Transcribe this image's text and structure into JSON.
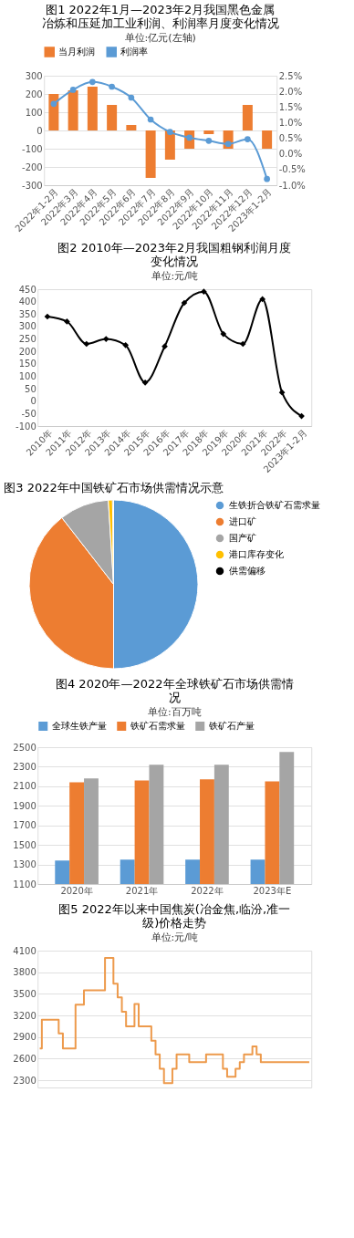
{
  "chart_data": [
    {
      "type": "bar",
      "title": "图1 2022年1月—2023年2月我国黑色金属冶炼和压延加工业利润、利润率月度变化情况",
      "subtitle": "单位:亿元(左轴)",
      "categories": [
        "2022年1-2月",
        "2022年3月",
        "2022年4月",
        "2022年5月",
        "2022年6月",
        "2022年7月",
        "2022年8月",
        "2022年9月",
        "2022年10月",
        "2022年11月",
        "2022年12月",
        "2023年1-2月"
      ],
      "series": [
        {
          "name": "当月利润",
          "type": "bar",
          "color": "#ed7d31",
          "values": [
            200,
            220,
            240,
            140,
            30,
            -260,
            -160,
            -100,
            -20,
            -100,
            140,
            -100
          ]
        },
        {
          "name": "利润率",
          "type": "line",
          "axis": "y2",
          "color": "#5b9bd5",
          "values": [
            1.6,
            2.05,
            2.3,
            2.15,
            1.8,
            1.1,
            0.7,
            0.52,
            0.42,
            0.32,
            0.47,
            -0.8
          ]
        }
      ],
      "ylim": [
        -300,
        300
      ],
      "yticks": [
        -300,
        -200,
        -100,
        0,
        100,
        200,
        300
      ],
      "y2lim": [
        -1.0,
        2.5
      ],
      "y2ticks": [
        {
          "value": -1.0,
          "label": "-1.0%"
        },
        {
          "value": -0.5,
          "label": "-0.5%"
        },
        {
          "value": 0,
          "label": "0.0%"
        },
        {
          "value": 0.5,
          "label": "0.5%"
        },
        {
          "value": 1.0,
          "label": "1.0%"
        },
        {
          "value": 1.5,
          "label": "1.5%"
        },
        {
          "value": 2.0,
          "label": "2.0%"
        },
        {
          "value": 2.5,
          "label": "2.5%"
        }
      ],
      "grid": "y",
      "legend": "top",
      "marker": "circle"
    },
    {
      "type": "line",
      "title": "图2 2010年—2023年2月我国粗钢利润月度变化情况",
      "subtitle": "单位:元/吨",
      "categories": [
        "2010年",
        "2011年",
        "2012年",
        "2013年",
        "2014年",
        "2015年",
        "2016年",
        "2017年",
        "2018年",
        "2019年",
        "2020年",
        "2021年",
        "2022年",
        "2023年1-2月"
      ],
      "series": [
        {
          "color": "#000000",
          "values": [
            340,
            320,
            230,
            250,
            225,
            75,
            220,
            395,
            440,
            270,
            230,
            410,
            35,
            -60
          ]
        }
      ],
      "ylim": [
        -100,
        450
      ],
      "yticks": [
        -100,
        -50,
        0,
        50,
        100,
        150,
        200,
        250,
        300,
        350,
        400,
        450
      ],
      "marker": "diamond"
    },
    {
      "type": "pie",
      "title": "图3 2022年中国铁矿石市场供需情况示意",
      "categories": [
        "生铁折合铁矿石需求量",
        "进口矿",
        "国产矿",
        "港口库存变化",
        "供需偏移"
      ],
      "values": [
        50,
        39.5,
        9.5,
        0.8,
        0.2
      ],
      "colors": [
        "#5b9bd5",
        "#ed7d31",
        "#a5a5a5",
        "#ffc000",
        "#000000"
      ],
      "legend": "right"
    },
    {
      "type": "bar",
      "title": "图4 2020年—2022年全球铁矿石市场供需情况",
      "subtitle": "单位:百万吨",
      "categories": [
        "2020年",
        "2021年",
        "2022年",
        "2023年E"
      ],
      "series": [
        {
          "name": "全球生铁产量",
          "color": "#5b9bd5",
          "values": [
            1340,
            1350,
            1350,
            1350
          ]
        },
        {
          "name": "铁矿石需求量",
          "color": "#ed7d31",
          "values": [
            2140,
            2160,
            2170,
            2150
          ]
        },
        {
          "name": "铁矿石产量",
          "color": "#a5a5a5",
          "values": [
            2180,
            2320,
            2320,
            2450
          ]
        }
      ],
      "ylim": [
        1100,
        2500
      ],
      "yticks": [
        1100,
        1300,
        1500,
        1700,
        1900,
        2100,
        2300,
        2500
      ],
      "grid": "y",
      "legend": "top"
    },
    {
      "type": "step",
      "title": "图5 2022年以来中国焦炭(冶金焦,临汾,准一级)价格走势",
      "subtitle": "单位:元/吨",
      "categories": [
        null,
        null,
        null,
        null,
        null,
        null,
        null,
        null,
        null,
        null,
        null,
        null,
        null,
        null,
        null,
        null,
        null,
        null,
        null,
        null,
        null,
        null,
        null,
        null,
        null,
        null,
        null,
        null,
        null,
        null,
        null,
        null,
        null,
        null,
        null,
        null,
        null,
        null,
        null,
        null,
        null,
        null,
        null,
        null,
        null,
        null,
        null,
        null,
        null,
        null,
        null,
        null,
        null,
        null,
        null,
        null,
        null,
        null,
        null,
        null,
        null,
        null,
        null,
        null,
        null
      ],
      "series": [
        {
          "color": "#ed9a4c",
          "values": [
            2740,
            3140,
            3140,
            3140,
            3140,
            2950,
            2740,
            2740,
            2740,
            3350,
            3350,
            3550,
            3550,
            3550,
            3550,
            3550,
            4000,
            4000,
            3640,
            3450,
            3250,
            3050,
            3050,
            3360,
            3050,
            3050,
            3050,
            2850,
            2660,
            2460,
            2260,
            2260,
            2460,
            2660,
            2660,
            2660,
            2550,
            2550,
            2550,
            2550,
            2660,
            2660,
            2660,
            2660,
            2460,
            2350,
            2350,
            2460,
            2550,
            2660,
            2660,
            2770,
            2660,
            2550,
            2550,
            2550,
            2550,
            2550,
            2550,
            2550,
            2550,
            2550,
            2550,
            2550,
            2550
          ]
        }
      ],
      "ylim": [
        2200,
        4100
      ],
      "yticks": [
        2300,
        2600,
        2900,
        3200,
        3500,
        3800,
        4100
      ],
      "grid": "y",
      "tick_labels": "y"
    }
  ]
}
